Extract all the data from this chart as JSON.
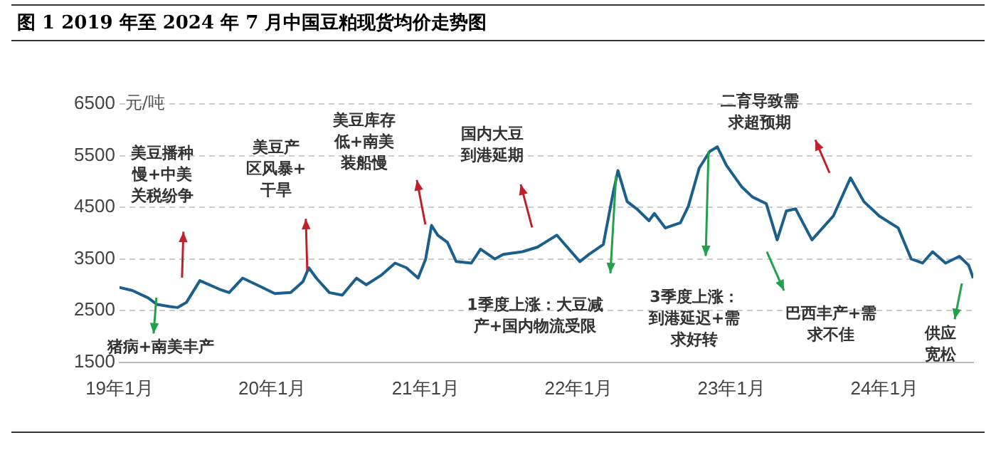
{
  "chart_data": {
    "type": "line",
    "title": "图 1 2019 年至 2024 年 7 月中国豆粕现货均价走势图",
    "ylabel": "元/吨",
    "series": [
      {
        "color": "#1b5f8c",
        "x": [
          "2019-01-01",
          "2019-02-01",
          "2019-03-10",
          "2019-04-01",
          "2019-05-01",
          "2019-05-20",
          "2019-06-10",
          "2019-07-12",
          "2019-09-01",
          "2019-09-20",
          "2019-10-22",
          "2019-11-25",
          "2020-01-07",
          "2020-02-14",
          "2020-03-14",
          "2020-03-28",
          "2020-04-15",
          "2020-05-16",
          "2020-06-16",
          "2020-07-20",
          "2020-08-12",
          "2020-09-16",
          "2020-10-20",
          "2020-11-16",
          "2020-12-14",
          "2021-01-01",
          "2021-01-15",
          "2021-01-30",
          "2021-02-22",
          "2021-03-15",
          "2021-04-20",
          "2021-05-12",
          "2021-06-15",
          "2021-07-05",
          "2021-08-20",
          "2021-09-25",
          "2021-11-10",
          "2022-01-04",
          "2022-01-26",
          "2022-03-01",
          "2022-03-25",
          "2022-04-05",
          "2022-04-27",
          "2022-05-20",
          "2022-06-18",
          "2022-07-01",
          "2022-07-27",
          "2022-09-01",
          "2022-09-20",
          "2022-10-16",
          "2022-11-10",
          "2022-11-28",
          "2022-12-20",
          "2023-01-26",
          "2023-02-20",
          "2023-03-25",
          "2023-04-20",
          "2023-05-12",
          "2023-06-03",
          "2023-07-12",
          "2023-09-01",
          "2023-10-12",
          "2023-11-13",
          "2023-12-20",
          "2024-02-03",
          "2024-03-05",
          "2024-04-01",
          "2024-04-25",
          "2024-05-26",
          "2024-06-28",
          "2024-07-20",
          "2024-07-31"
        ],
        "values": [
          2950,
          2890,
          2750,
          2620,
          2580,
          2560,
          2660,
          3080,
          2900,
          2850,
          3130,
          3000,
          2830,
          2850,
          3060,
          3330,
          3130,
          2850,
          2800,
          3130,
          3000,
          3180,
          3420,
          3330,
          3130,
          3500,
          4150,
          3960,
          3820,
          3450,
          3420,
          3690,
          3500,
          3590,
          3640,
          3730,
          3960,
          3450,
          3590,
          3780,
          4800,
          5210,
          4610,
          4470,
          4240,
          4380,
          4100,
          4200,
          4520,
          5260,
          5580,
          5670,
          5310,
          4890,
          4700,
          4570,
          3870,
          4430,
          4470,
          3870,
          4330,
          5070,
          4610,
          4330,
          4100,
          3500,
          3420,
          3640,
          3420,
          3550,
          3380,
          3130
        ]
      }
    ],
    "xlim": [
      "2019-01-01",
      "2024-07-31"
    ],
    "xticks": [
      {
        "value": "2019-01-01",
        "label": "19年1月"
      },
      {
        "value": "2020-01-01",
        "label": "20年1月"
      },
      {
        "value": "2021-01-01",
        "label": "21年1月"
      },
      {
        "value": "2022-01-01",
        "label": "22年1月"
      },
      {
        "value": "2023-01-01",
        "label": "23年1月"
      },
      {
        "value": "2024-01-01",
        "label": "24年1月"
      }
    ],
    "ylim": [
      1500,
      6500
    ],
    "yticks": [
      1500,
      2500,
      3500,
      4500,
      5500,
      6500
    ],
    "grid": "y",
    "annotations": [
      "猪病+南美丰产",
      "美豆播种慢+中美关税纷争",
      "美豆产区风暴+干旱",
      "美豆库存低+南美装船慢",
      "国内大豆到港延期",
      "1季度上涨：大豆减产+国内物流受限",
      "3季度上涨：到港延迟+需求好转",
      "巴西丰产+需求不佳",
      "二育导致需求超预期",
      "供应宽松"
    ]
  }
}
